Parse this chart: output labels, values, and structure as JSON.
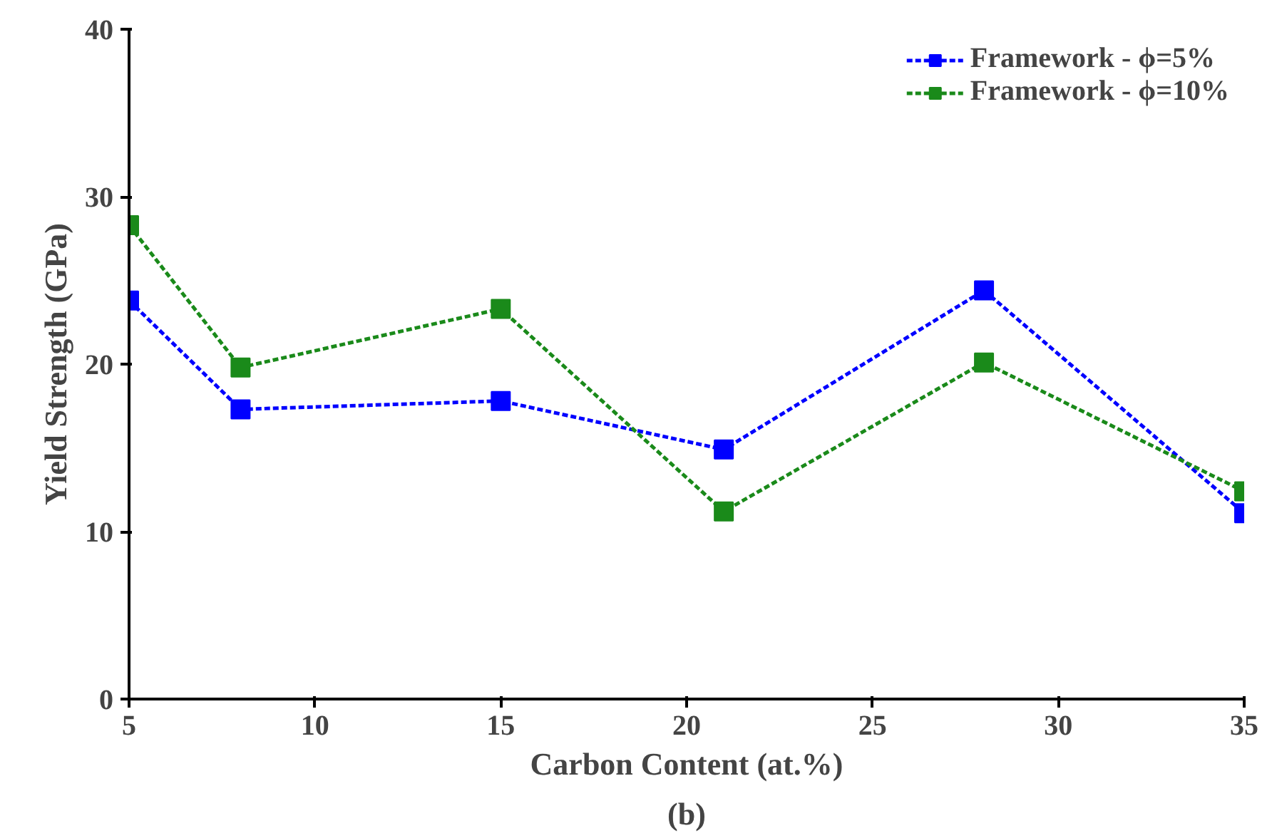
{
  "chart_data": {
    "type": "line",
    "xlabel": "Carbon Content (at.%)",
    "ylabel": "Yield Strength (GPa)",
    "x": [
      5,
      8,
      15,
      21,
      28,
      35
    ],
    "series": [
      {
        "name": "Framework - ϕ=5%",
        "color": "#0000ff",
        "values": [
          23.8,
          17.3,
          17.8,
          14.9,
          24.4,
          11.1
        ]
      },
      {
        "name": "Framework - ϕ=10%",
        "color": "#1a8a1a",
        "values": [
          28.3,
          19.8,
          23.3,
          11.2,
          20.1,
          12.4
        ]
      }
    ],
    "xlim": [
      5,
      35
    ],
    "ylim": [
      0,
      40
    ],
    "xticks": [
      5,
      10,
      15,
      20,
      25,
      30,
      35
    ],
    "yticks": [
      0,
      10,
      20,
      30,
      40
    ],
    "grid": false,
    "legend": "top right",
    "marker": "square",
    "line_style": "dashed",
    "annotations": [
      "(b)"
    ]
  }
}
